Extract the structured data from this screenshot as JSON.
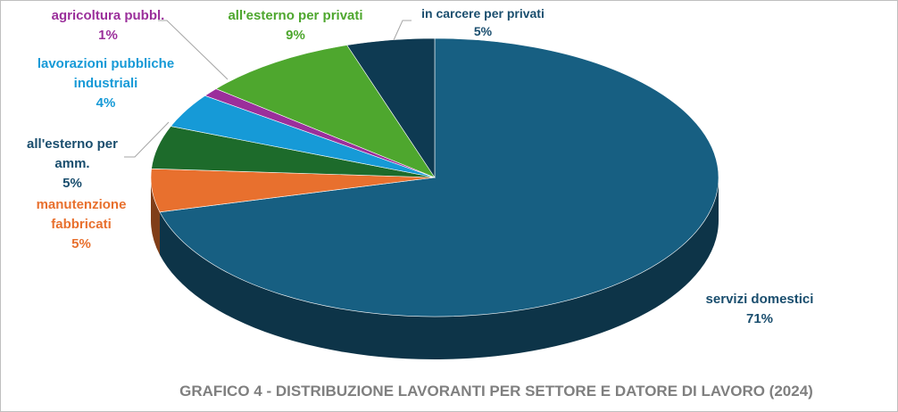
{
  "chart_data": {
    "type": "pie",
    "title": "GRAFICO 4 - DISTRIBUZIONE LAVORANTI PER SETTORE E DATORE DI LAVORO (2024)",
    "categories": [
      "servizi domestici",
      "manutenzione fabbricati",
      "all'esterno per amm.",
      "lavorazioni pubbliche industriali",
      "agricoltura pubbl.",
      "all'esterno per privati",
      "in carcere per privati"
    ],
    "values": [
      71,
      5,
      5,
      4,
      1,
      9,
      5
    ],
    "value_labels": [
      "71%",
      "5%",
      "5%",
      "4%",
      "1%",
      "9%",
      "5%"
    ],
    "colors": [
      "#175f82",
      "#e8702e",
      "#1d6b2b",
      "#169ad7",
      "#9b2f9b",
      "#4ea72e",
      "#0e3a52"
    ],
    "label_colors": [
      "#1a4e6e",
      "#e8702e",
      "#1a4e6e",
      "#169ad7",
      "#9b2f9b",
      "#4ea72e",
      "#1a4e6e"
    ]
  }
}
